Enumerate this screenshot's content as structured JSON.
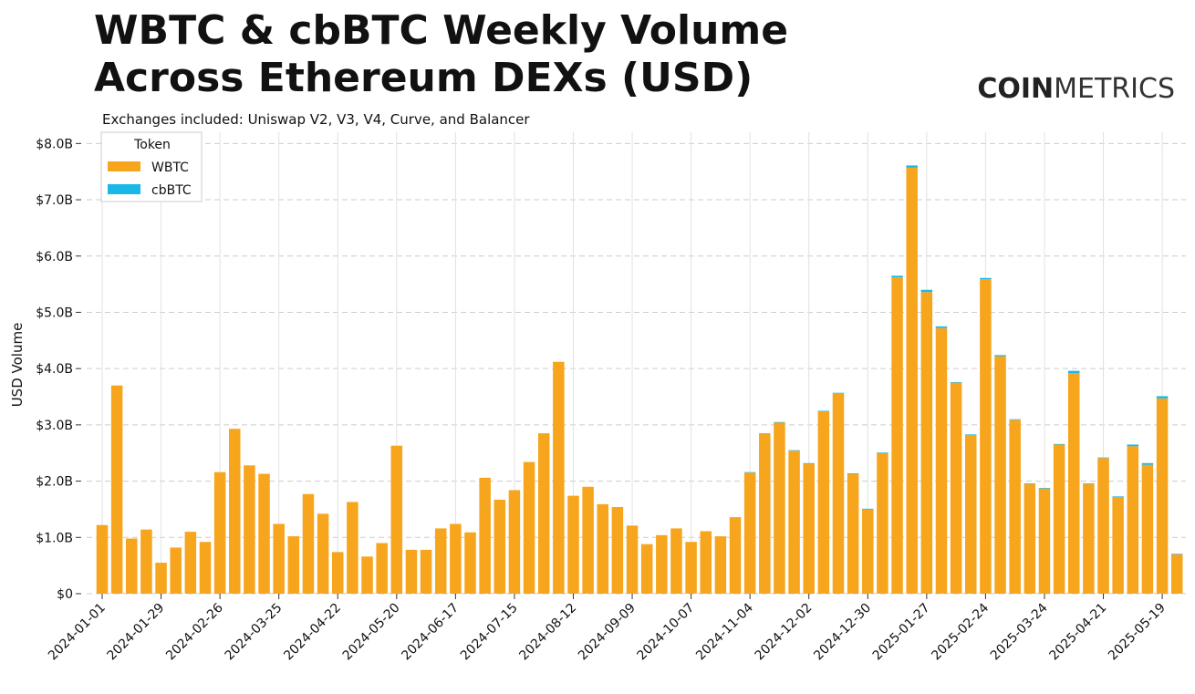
{
  "brand": {
    "bold": "COIN",
    "light": "METRICS"
  },
  "chart_data": {
    "type": "stacked_bar",
    "title": [
      "WBTC & cbBTC Weekly Volume",
      "Across Ethereum DEXs (USD)"
    ],
    "subtitle": "Exchanges included: Uniswap V2, V3, V4, Curve, and Balancer",
    "y_label": "USD Volume",
    "legend_title": "Token",
    "legend": "upper left",
    "grid": true,
    "categories": [
      "2024-01-01",
      null,
      null,
      null,
      "2024-01-29",
      null,
      null,
      null,
      "2024-02-26",
      null,
      null,
      null,
      "2024-03-25",
      null,
      null,
      null,
      "2024-04-22",
      null,
      null,
      null,
      "2024-05-20",
      null,
      null,
      null,
      "2024-06-17",
      null,
      null,
      null,
      "2024-07-15",
      null,
      null,
      null,
      "2024-08-12",
      null,
      null,
      null,
      "2024-09-09",
      null,
      null,
      null,
      "2024-10-07",
      null,
      null,
      null,
      "2024-11-04",
      null,
      null,
      null,
      "2024-12-02",
      null,
      null,
      null,
      "2024-12-30",
      null,
      null,
      null,
      "2025-01-27",
      null,
      null,
      null,
      "2025-02-24",
      null,
      null,
      null,
      "2025-03-24",
      null,
      null,
      null,
      "2025-04-21",
      null,
      null,
      null,
      "2025-05-19",
      null
    ],
    "series": [
      {
        "name": "WBTC",
        "color": "#f7a51c",
        "values": [
          1.22,
          3.7,
          0.98,
          1.14,
          0.55,
          0.82,
          1.1,
          0.92,
          2.16,
          2.93,
          2.28,
          2.13,
          1.24,
          1.02,
          1.77,
          1.42,
          0.74,
          1.63,
          0.66,
          0.9,
          2.63,
          0.78,
          0.78,
          1.16,
          1.24,
          1.09,
          2.06,
          1.67,
          1.84,
          2.34,
          2.85,
          4.12,
          1.74,
          1.9,
          1.59,
          1.54,
          1.21,
          0.88,
          1.04,
          1.16,
          0.92,
          1.11,
          1.02,
          1.36,
          2.15,
          2.84,
          3.04,
          2.54,
          2.31,
          3.24,
          3.56,
          2.13,
          1.5,
          2.5,
          5.62,
          7.57,
          5.36,
          4.72,
          3.75,
          2.82,
          5.59,
          4.22,
          3.09,
          1.95,
          1.87,
          2.65,
          3.92,
          1.95,
          2.41,
          1.72,
          2.62,
          2.29,
          3.47,
          0.7
        ]
      },
      {
        "name": "cbBTC",
        "color": "#1ab8e8",
        "values": [
          0,
          0,
          0,
          0,
          0,
          0,
          0,
          0,
          0,
          0,
          0,
          0,
          0,
          0,
          0,
          0,
          0,
          0,
          0,
          0,
          0,
          0,
          0,
          0,
          0,
          0,
          0,
          0,
          0,
          0,
          0,
          0,
          0,
          0,
          0,
          0,
          0,
          0,
          0,
          0,
          0,
          0,
          0,
          0,
          0.01,
          0.01,
          0.01,
          0.01,
          0.01,
          0.01,
          0.01,
          0.01,
          0.01,
          0.01,
          0.03,
          0.04,
          0.04,
          0.03,
          0.01,
          0.01,
          0.02,
          0.02,
          0.01,
          0.01,
          0.01,
          0.01,
          0.04,
          0.01,
          0.01,
          0.01,
          0.03,
          0.03,
          0.04,
          0.01
        ]
      }
    ],
    "ylim": [
      0,
      8.2
    ],
    "yticks": [
      {
        "value": 0,
        "label": "$0"
      },
      {
        "value": 1,
        "label": "$1.0B"
      },
      {
        "value": 2,
        "label": "$2.0B"
      },
      {
        "value": 3,
        "label": "$3.0B"
      },
      {
        "value": 4,
        "label": "$4.0B"
      },
      {
        "value": 5,
        "label": "$5.0B"
      },
      {
        "value": 6,
        "label": "$6.0B"
      },
      {
        "value": 7,
        "label": "$7.0B"
      },
      {
        "value": 8,
        "label": "$8.0B"
      }
    ]
  }
}
